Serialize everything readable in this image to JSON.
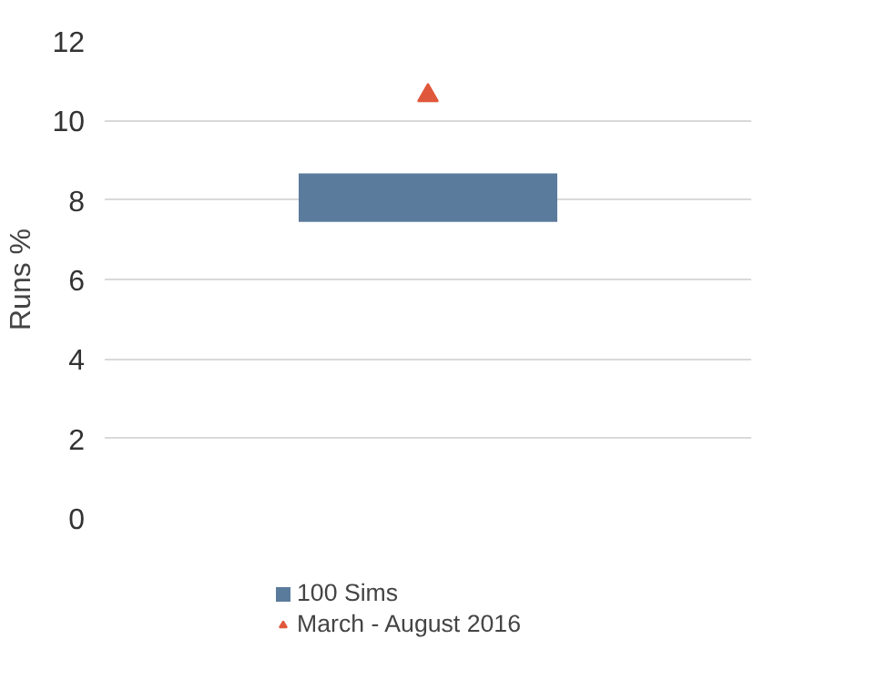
{
  "chart_data": {
    "type": "bar",
    "ylabel": "Runs %",
    "categories": [
      null
    ],
    "ylim": [
      0,
      12
    ],
    "yticks": [
      0,
      2,
      4,
      6,
      8,
      10,
      12
    ],
    "grid": "y",
    "legend": "bottom",
    "series": [
      {
        "name": "100 Sims",
        "color": "#5b7b9c",
        "values": [
          1.22
        ],
        "base": [
          7.45
        ]
      },
      {
        "name": "March - August 2016",
        "type": "scatter",
        "marker": "triangle",
        "color": "#e0583c",
        "values": [
          10.63
        ]
      }
    ]
  }
}
